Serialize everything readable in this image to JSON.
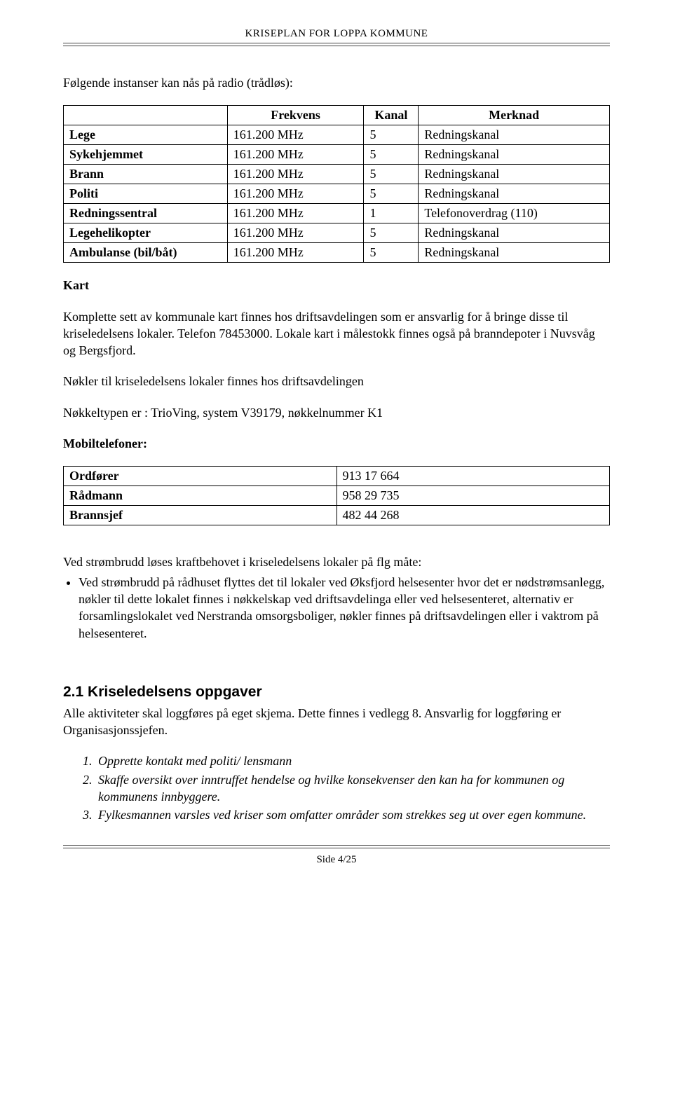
{
  "header": "KRISEPLAN FOR LOPPA KOMMUNE",
  "intro": "Følgende instanser kan nås på radio (trådløs):",
  "freqTable": {
    "headers": [
      "",
      "Frekvens",
      "Kanal",
      "Merknad"
    ],
    "rows": [
      [
        "Lege",
        "161.200 MHz",
        "5",
        "Redningskanal"
      ],
      [
        "Sykehjemmet",
        "161.200 MHz",
        "5",
        "Redningskanal"
      ],
      [
        "Brann",
        "161.200 MHz",
        "5",
        "Redningskanal"
      ],
      [
        "Politi",
        "161.200 MHz",
        "5",
        "Redningskanal"
      ],
      [
        "Redningssentral",
        "161.200 MHz",
        "1",
        "Telefonoverdrag (110)"
      ],
      [
        "Legehelikopter",
        "161.200 MHz",
        "5",
        "Redningskanal"
      ],
      [
        "Ambulanse (bil/båt)",
        "161.200 MHz",
        "5",
        "Redningskanal"
      ]
    ]
  },
  "kartHeading": "Kart",
  "kartPara": "Komplette sett av kommunale kart finnes hos driftsavdelingen som er ansvarlig for å bringe disse til kriseledelsens lokaler. Telefon 78453000. Lokale kart i målestokk  finnes også på branndepoter i Nuvsvåg og Bergsfjord.",
  "noklerPara": "Nøkler til kriseledelsens lokaler finnes hos driftsavdelingen",
  "nokkelTypePara": "Nøkkeltypen er : TrioVing, system V39179, nøkkelnummer K1",
  "mobilHeading": "Mobiltelefoner:",
  "mobilTable": {
    "rows": [
      [
        "Ordfører",
        "913 17 664"
      ],
      [
        "Rådmann",
        "958 29 735"
      ],
      [
        "Brannsjef",
        "482 44 268"
      ]
    ]
  },
  "stromIntro": "Ved strømbrudd løses kraftbehovet i kriseledelsens lokaler på flg måte:",
  "stromBullet": "Ved strømbrudd på rådhuset flyttes det til lokaler ved Øksfjord helsesenter hvor det er nødstrømsanlegg, nøkler til dette lokalet finnes i nøkkelskap ved driftsavdelinga eller ved helsesenteret, alternativ er forsamlingslokalet ved Nerstranda omsorgsboliger, nøkler finnes på driftsavdelingen eller i vaktrom på helsesenteret.",
  "sectionHeading": "2.1 Kriseledelsens oppgaver",
  "sectionIntro": "Alle aktiviteter skal loggføres på eget skjema. Dette finnes i vedlegg 8. Ansvarlig for loggføring er Organisasjonssjefen.",
  "tasks": [
    "Opprette kontakt med politi/ lensmann",
    "Skaffe oversikt over inntruffet hendelse og hvilke konsekvenser den kan ha for kommunen og kommunens innbyggere.",
    "Fylkesmannen varsles ved kriser som omfatter områder som strekkes seg ut over egen  kommune."
  ],
  "footer": "Side 4/25"
}
